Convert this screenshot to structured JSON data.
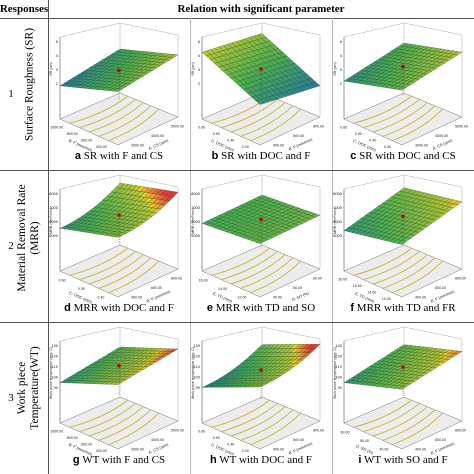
{
  "header": {
    "responses": "Responses",
    "relation": "Relation with significant parameter"
  },
  "rows": [
    {
      "number": "1",
      "response": "Surface Roughness (SR)",
      "plots": [
        {
          "letter": "a",
          "caption": "SR with F and CS",
          "z_label": "SR (µm)",
          "z_ticks": [
            "5",
            "4",
            "3",
            "2"
          ],
          "x_label": "B: F (mm/min)",
          "x_ticks": [
            "1000.00",
            "800.00",
            "600.00",
            "400.00"
          ],
          "y_label": "A: CS (rpm)",
          "y_ticks": [
            "3000.00",
            "4000.00",
            "5000.00"
          ]
        },
        {
          "letter": "b",
          "caption": "SR with DOC and F",
          "z_label": "SR (µm)",
          "z_ticks": [
            "5",
            "4",
            "3",
            "2"
          ],
          "x_label": "C: DOC (mm)",
          "x_ticks": [
            "0.60",
            "0.50",
            "0.40",
            "0.30"
          ],
          "y_label": "B: F (mm/min)",
          "y_ticks": [
            "400.00",
            "600.00",
            "800.00"
          ]
        },
        {
          "letter": "c",
          "caption": "SR with DOC and CS",
          "z_label": "SR (µm)",
          "z_ticks": [
            "5",
            "4",
            "3",
            "2"
          ],
          "x_label": "C: DOC (mm)",
          "x_ticks": [
            "0.60",
            "0.50",
            "0.40",
            "0.30"
          ],
          "y_label": "A: CS (rpm)",
          "y_ticks": [
            "3000.00",
            "4000.00",
            "5000.00"
          ]
        }
      ]
    },
    {
      "number": "2",
      "response": "Material Removal Rate (MRR)",
      "plots": [
        {
          "letter": "d",
          "caption": "MRR with DOC and F",
          "z_label": "MRR (mm³/min)",
          "z_ticks": [
            "8000",
            "7000",
            "6000",
            "5000"
          ],
          "x_label": "C: DOC (mm)",
          "x_ticks": [
            "0.60",
            "0.50",
            "0.40"
          ],
          "y_label": "B: F (mm/min)",
          "y_ticks": [
            "400.00",
            "600.00",
            "800.00"
          ]
        },
        {
          "letter": "e",
          "caption": "MRR with TD and SO",
          "z_label": "MRR (mm³/min)",
          "z_ticks": [
            "8000",
            "7000",
            "6000",
            "5000"
          ],
          "x_label": "E: TD (mm)",
          "x_ticks": [
            "16.00",
            "14.00",
            "12.00"
          ],
          "y_label": "D: SO (%)",
          "y_ticks": [
            "40.00",
            "50.00",
            "60.00"
          ]
        },
        {
          "letter": "f",
          "caption": "MRR with TD and FR",
          "z_label": "MRR (mm³/min)",
          "z_ticks": [
            "8000",
            "7000",
            "6000",
            "5000"
          ],
          "x_label": "E: TD (mm)",
          "x_ticks": [
            "20.00",
            "16.00",
            "14.00",
            "12.00"
          ],
          "y_label": "B: F (mm/min)",
          "y_ticks": [
            "400.00",
            "600.00",
            "800.00"
          ]
        }
      ]
    },
    {
      "number": "3",
      "response": "Work piece Temperature(WT)",
      "plots": [
        {
          "letter": "g",
          "caption": "WT with F and CS",
          "z_label": "Work piece temperature (deg. C)",
          "z_ticks": [
            "130",
            "120",
            "110",
            "100",
            "90"
          ],
          "x_label": "B: F (mm/min)",
          "x_ticks": [
            "1000.00",
            "800.00",
            "600.00",
            "400.00"
          ],
          "y_label": "A: CS (rpm)",
          "y_ticks": [
            "3000.00",
            "4000.00",
            "5000.00"
          ]
        },
        {
          "letter": "h",
          "caption": "WT with DOC and  F",
          "z_label": "Work piece temperature (deg. C)",
          "z_ticks": [
            "130",
            "120",
            "110",
            "100",
            "90"
          ],
          "x_label": "C: DOC (mm)",
          "x_ticks": [
            "0.60",
            "0.50",
            "0.40",
            "0.30"
          ],
          "y_label": "B: F (mm/min)",
          "y_ticks": [
            "400.00",
            "600.00",
            "800.00"
          ]
        },
        {
          "letter": "i",
          "caption": "WT with SO and F",
          "z_label": "Work piece temperature (deg. C)",
          "z_ticks": [
            "130",
            "120",
            "110",
            "100",
            "90"
          ],
          "x_label": "D: SO (%)",
          "x_ticks": [
            "60.00",
            "50.00",
            "40.00"
          ],
          "y_label": "B: F (mm/min)",
          "y_ticks": [
            "400.00",
            "600.00",
            "800.00"
          ]
        }
      ]
    }
  ],
  "colors": {
    "surface_low": "#1565c0",
    "surface_mid": "#4caf50",
    "surface_high": "#e53935",
    "contour": "#c9a400",
    "axis": "#555555"
  }
}
